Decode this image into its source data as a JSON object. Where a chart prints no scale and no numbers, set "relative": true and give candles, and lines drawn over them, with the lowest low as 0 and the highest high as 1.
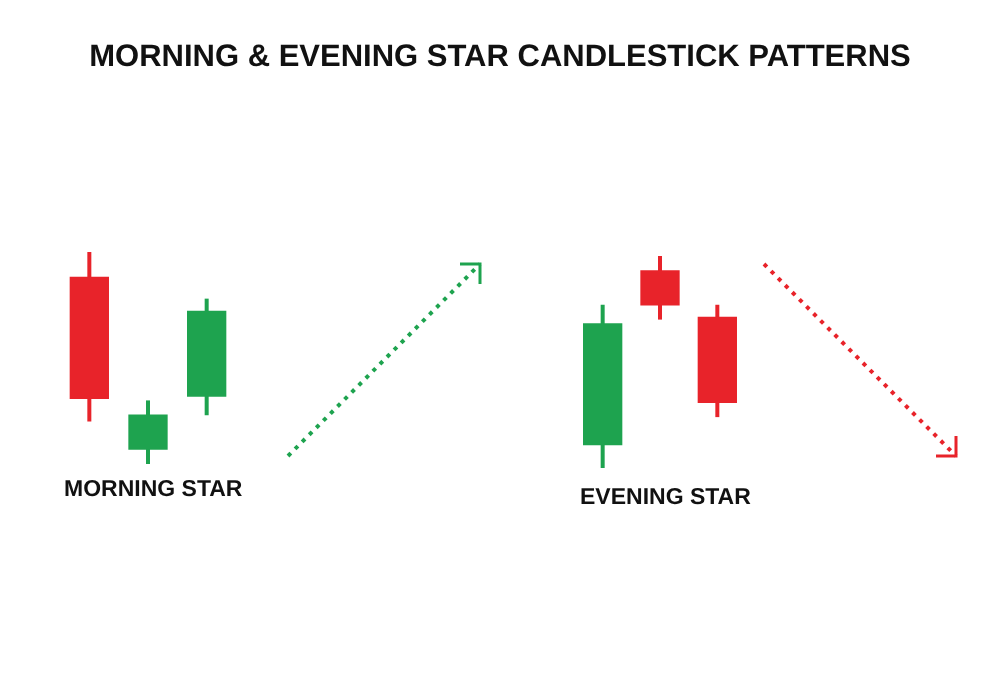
{
  "chart_data": [
    {
      "type": "candlestick",
      "title": "MORNING & EVENING STAR CANDLESTICK PATTERNS",
      "xlabel": "MORNING STAR",
      "categories": [
        null,
        null,
        null
      ],
      "relative": true,
      "tick_labels": false,
      "ohlc": [
        [
          0.88,
          1,
          0.2,
          0.31
        ],
        [
          0.07,
          0.3,
          0,
          0.23
        ],
        [
          0.32,
          0.78,
          0.23,
          0.72
        ]
      ],
      "colors": [
        "#e8232a",
        "#1ea34f",
        "#1ea34f"
      ]
    },
    {
      "type": "candlestick",
      "xlabel": "EVENING STAR",
      "categories": [
        null,
        null,
        null
      ],
      "relative": true,
      "tick_labels": false,
      "ohlc": [
        [
          0.11,
          0.77,
          0,
          0.68
        ],
        [
          0.93,
          1,
          0.7,
          0.77
        ],
        [
          0.71,
          0.77,
          0.24,
          0.31
        ]
      ],
      "colors": [
        "#1ea34f",
        "#e8232a",
        "#e8232a"
      ]
    }
  ]
}
